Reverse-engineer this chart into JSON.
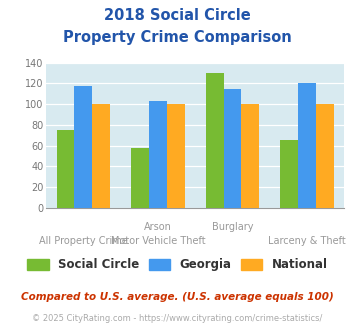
{
  "title_line1": "2018 Social Circle",
  "title_line2": "Property Crime Comparison",
  "title_color": "#2255aa",
  "series": {
    "Social Circle": [
      75,
      58,
      130,
      65
    ],
    "Georgia": [
      118,
      103,
      115,
      120
    ],
    "National": [
      100,
      100,
      100,
      100
    ]
  },
  "colors": {
    "Social Circle": "#77bb33",
    "Georgia": "#4499ee",
    "National": "#ffaa22"
  },
  "top_labels": [
    "",
    "Arson",
    "Burglary",
    ""
  ],
  "bottom_labels": [
    "All Property Crime",
    "Motor Vehicle Theft",
    "",
    "Larceny & Theft"
  ],
  "ylim": [
    0,
    140
  ],
  "yticks": [
    0,
    20,
    40,
    60,
    80,
    100,
    120,
    140
  ],
  "plot_bg": "#d8eaf0",
  "footnote1": "Compared to U.S. average. (U.S. average equals 100)",
  "footnote2": "© 2025 CityRating.com - https://www.cityrating.com/crime-statistics/",
  "footnote1_color": "#cc3300",
  "footnote2_color": "#aaaaaa"
}
